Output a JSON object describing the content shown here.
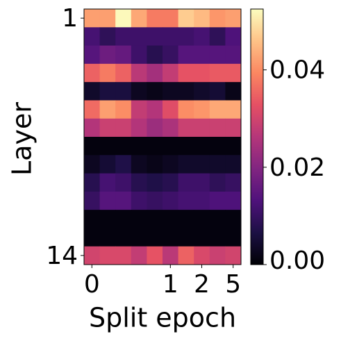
{
  "chart_data": {
    "type": "heatmap",
    "x_label": "Split epoch",
    "y_label": "Layer",
    "x": [
      "0",
      null,
      null,
      null,
      null,
      "1",
      null,
      "2",
      null,
      "5"
    ],
    "y": [
      "1",
      null,
      null,
      null,
      null,
      null,
      null,
      null,
      null,
      null,
      null,
      null,
      null,
      "14"
    ],
    "colormap": "magma",
    "values": [
      [
        0.042,
        0.042,
        0.052,
        0.043,
        0.038,
        0.038,
        0.047,
        0.045,
        0.041,
        0.042
      ],
      [
        0.012,
        0.009,
        0.011,
        0.011,
        0.011,
        0.011,
        0.011,
        0.012,
        0.009,
        0.013
      ],
      [
        0.014,
        0.017,
        0.016,
        0.011,
        0.008,
        0.01,
        0.014,
        0.014,
        0.014,
        0.014
      ],
      [
        0.035,
        0.038,
        0.035,
        0.027,
        0.024,
        0.028,
        0.033,
        0.033,
        0.034,
        0.034
      ],
      [
        0.004,
        0.006,
        0.006,
        0.003,
        0.002,
        0.003,
        0.003,
        0.004,
        0.005,
        0.002
      ],
      [
        0.036,
        0.042,
        0.04,
        0.028,
        0.026,
        0.032,
        0.04,
        0.041,
        0.043,
        0.043
      ],
      [
        0.026,
        0.029,
        0.029,
        0.026,
        0.023,
        0.025,
        0.029,
        0.029,
        0.029,
        0.029
      ],
      [
        0.001,
        0.001,
        0.001,
        0.001,
        0.001,
        0.001,
        0.001,
        0.001,
        0.001,
        0.001
      ],
      [
        0.003,
        0.005,
        0.007,
        0.003,
        0.002,
        0.003,
        0.004,
        0.004,
        0.004,
        0.004
      ],
      [
        0.008,
        0.012,
        0.011,
        0.008,
        0.007,
        0.008,
        0.011,
        0.011,
        0.009,
        0.01
      ],
      [
        0.01,
        0.014,
        0.014,
        0.011,
        0.01,
        0.011,
        0.012,
        0.012,
        0.013,
        0.013
      ],
      [
        0.001,
        0.001,
        0.001,
        0.001,
        0.001,
        0.001,
        0.001,
        0.001,
        0.001,
        0.001
      ],
      [
        0.001,
        0.001,
        0.001,
        0.001,
        0.001,
        0.001,
        0.001,
        0.001,
        0.001,
        0.001
      ],
      [
        0.03,
        0.031,
        0.031,
        0.028,
        0.033,
        0.027,
        0.035,
        0.031,
        0.029,
        0.03
      ]
    ],
    "clim": [
      0,
      0.0525
    ],
    "cticks": [
      {
        "value": 0,
        "label": "0.00"
      },
      {
        "value": 0.02,
        "label": "0.02"
      },
      {
        "value": 0.04,
        "label": "0.04"
      }
    ]
  }
}
